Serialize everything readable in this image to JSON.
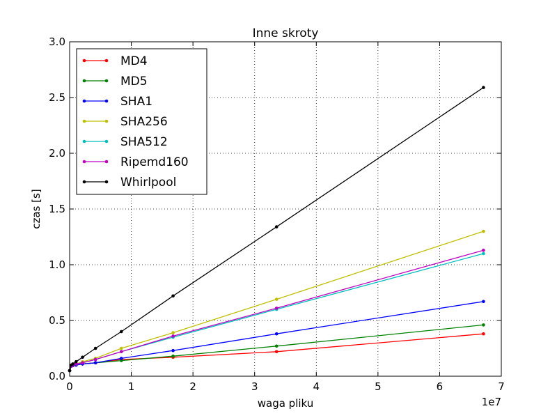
{
  "chart_data": {
    "type": "line",
    "title": "Inne skroty",
    "xlabel": "waga pliku",
    "ylabel": "czas [s]",
    "x_offset_label": "1e7",
    "xlim": [
      0,
      7
    ],
    "ylim": [
      0,
      3.0
    ],
    "x_scale": 10000000,
    "xticks": [
      0,
      1,
      2,
      3,
      4,
      5,
      6,
      7
    ],
    "xtick_labels": [
      "0",
      "1",
      "2",
      "3",
      "4",
      "5",
      "6",
      "7"
    ],
    "yticks": [
      0,
      0.5,
      1.0,
      1.5,
      2.0,
      2.5,
      3.0
    ],
    "ytick_labels": [
      "0.0",
      "0.5",
      "1.0",
      "1.5",
      "2.0",
      "2.5",
      "3.0"
    ],
    "grid": true,
    "legend_position": "top-left",
    "x": [
      0,
      262144,
      524288,
      1048576,
      2097152,
      4194304,
      8388608,
      16777216,
      33554432,
      67108864
    ],
    "series": [
      {
        "name": "MD4",
        "color": "#ff0000",
        "values": [
          0.05,
          0.09,
          0.095,
          0.1,
          0.11,
          0.12,
          0.15,
          0.17,
          0.22,
          0.38
        ]
      },
      {
        "name": "MD5",
        "color": "#008000",
        "values": [
          0.05,
          0.09,
          0.095,
          0.1,
          0.11,
          0.12,
          0.14,
          0.18,
          0.27,
          0.46
        ]
      },
      {
        "name": "SHA1",
        "color": "#0000ff",
        "values": [
          0.05,
          0.09,
          0.095,
          0.1,
          0.11,
          0.12,
          0.16,
          0.23,
          0.38,
          0.67
        ]
      },
      {
        "name": "SHA256",
        "color": "#bfbf00",
        "values": [
          0.05,
          0.09,
          0.1,
          0.11,
          0.13,
          0.16,
          0.25,
          0.39,
          0.69,
          1.3
        ]
      },
      {
        "name": "SHA512",
        "color": "#00bfbf",
        "values": [
          0.05,
          0.09,
          0.1,
          0.11,
          0.12,
          0.15,
          0.22,
          0.35,
          0.6,
          1.1
        ]
      },
      {
        "name": "Ripemd160",
        "color": "#bf00bf",
        "values": [
          0.05,
          0.09,
          0.1,
          0.11,
          0.12,
          0.15,
          0.22,
          0.36,
          0.61,
          1.13
        ]
      },
      {
        "name": "Whirlpool",
        "color": "#000000",
        "values": [
          0.05,
          0.1,
          0.11,
          0.13,
          0.17,
          0.25,
          0.4,
          0.72,
          1.34,
          2.59
        ]
      }
    ]
  }
}
